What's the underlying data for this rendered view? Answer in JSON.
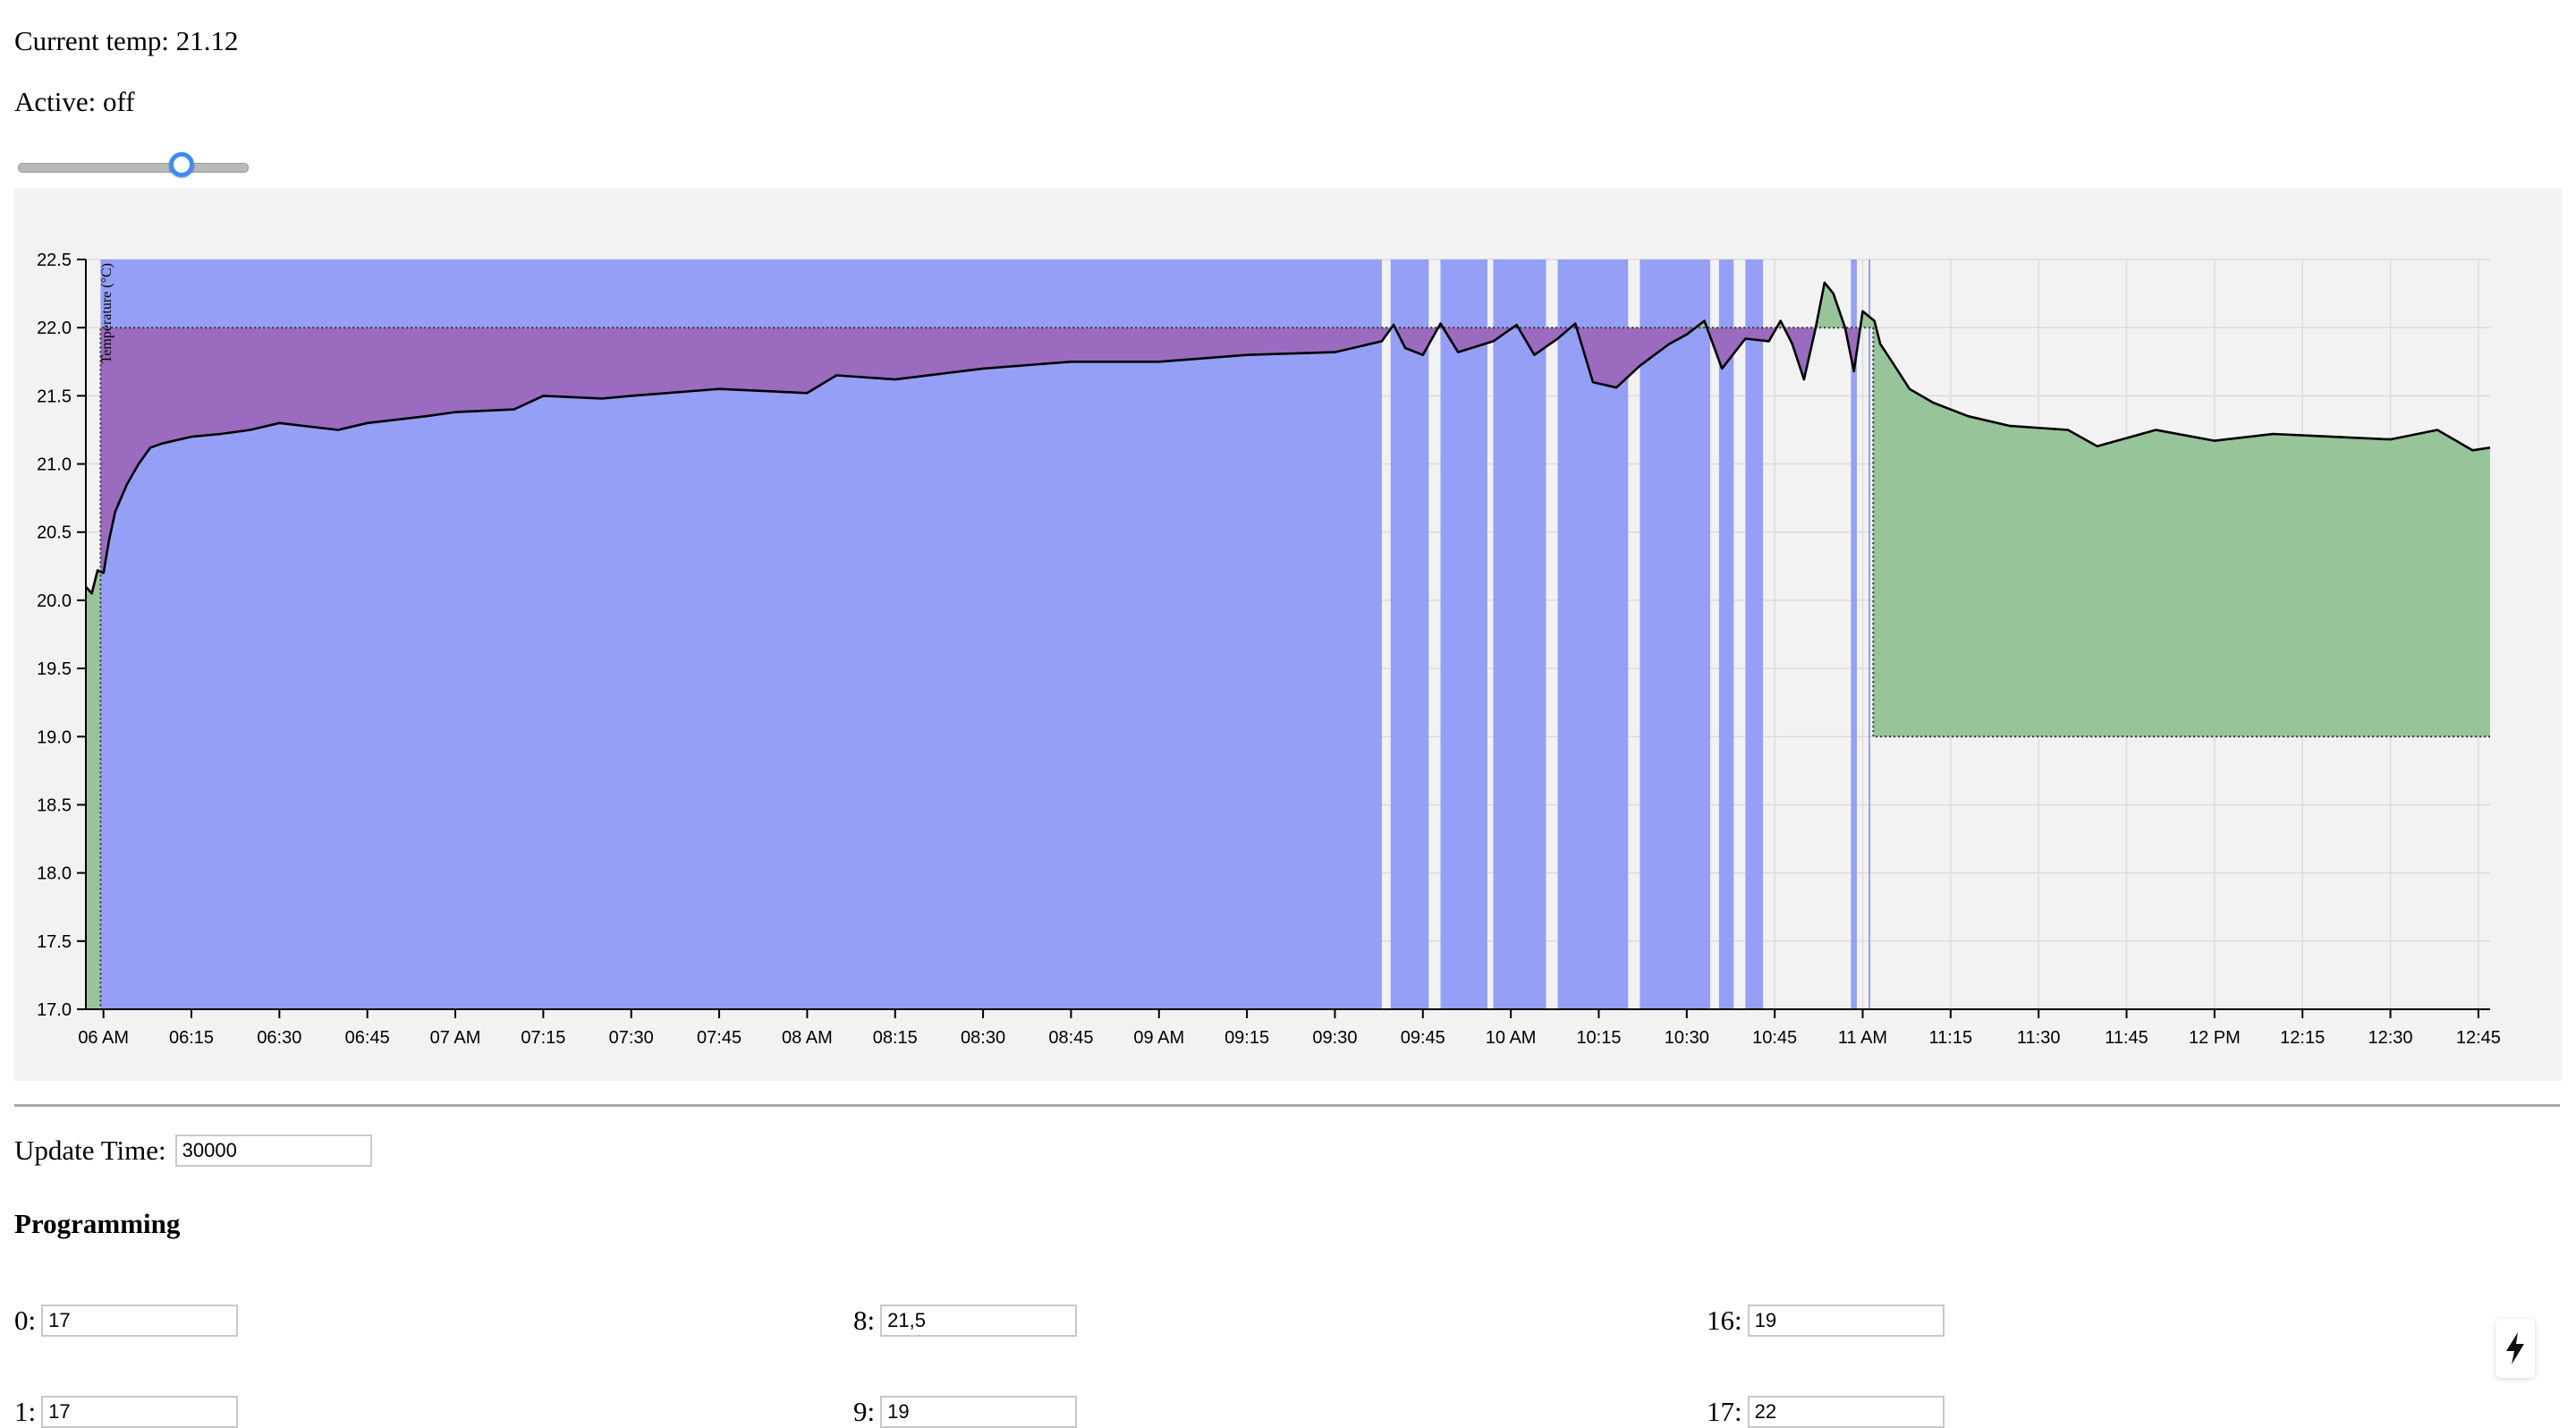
{
  "status": {
    "current_temp_label": "Current temp: 21.12",
    "active_label": "Active: off"
  },
  "slider": {
    "value_fraction": 0.73
  },
  "chart_data": {
    "type": "area",
    "ylabel": "Temperature (°C)",
    "ylim": [
      17.0,
      22.5
    ],
    "yticks": [
      "17.0",
      "17.5",
      "18.0",
      "18.5",
      "19.0",
      "19.5",
      "20.0",
      "20.5",
      "21.0",
      "21.5",
      "22.0",
      "22.5"
    ],
    "xlim": [
      "05:57",
      "12:47"
    ],
    "xticks": [
      {
        "t": "06:00",
        "label": "06 AM"
      },
      {
        "t": "06:15",
        "label": "06:15"
      },
      {
        "t": "06:30",
        "label": "06:30"
      },
      {
        "t": "06:45",
        "label": "06:45"
      },
      {
        "t": "07:00",
        "label": "07 AM"
      },
      {
        "t": "07:15",
        "label": "07:15"
      },
      {
        "t": "07:30",
        "label": "07:30"
      },
      {
        "t": "07:45",
        "label": "07:45"
      },
      {
        "t": "08:00",
        "label": "08 AM"
      },
      {
        "t": "08:15",
        "label": "08:15"
      },
      {
        "t": "08:30",
        "label": "08:30"
      },
      {
        "t": "08:45",
        "label": "08:45"
      },
      {
        "t": "09:00",
        "label": "09 AM"
      },
      {
        "t": "09:15",
        "label": "09:15"
      },
      {
        "t": "09:30",
        "label": "09:30"
      },
      {
        "t": "09:45",
        "label": "09:45"
      },
      {
        "t": "10:00",
        "label": "10 AM"
      },
      {
        "t": "10:15",
        "label": "10:15"
      },
      {
        "t": "10:30",
        "label": "10:30"
      },
      {
        "t": "10:45",
        "label": "10:45"
      },
      {
        "t": "11:00",
        "label": "11 AM"
      },
      {
        "t": "11:15",
        "label": "11:15"
      },
      {
        "t": "11:30",
        "label": "11:30"
      },
      {
        "t": "11:45",
        "label": "11:45"
      },
      {
        "t": "12:00",
        "label": "12 PM"
      },
      {
        "t": "12:15",
        "label": "12:15"
      },
      {
        "t": "12:30",
        "label": "12:30"
      },
      {
        "t": "12:45",
        "label": "12:45"
      }
    ],
    "grid": true,
    "setpoint": [
      {
        "t": "05:57",
        "v": 17.0
      },
      {
        "t": "05:59.5",
        "v": 17.0
      },
      {
        "t": "05:59.5",
        "v": 22.0
      },
      {
        "t": "11:01.8",
        "v": 22.0
      },
      {
        "t": "11:01.8",
        "v": 19.0
      },
      {
        "t": "12:47",
        "v": 19.0
      }
    ],
    "temperature": [
      {
        "t": "05:57",
        "v": 20.1
      },
      {
        "t": "05:58",
        "v": 20.05
      },
      {
        "t": "05:59",
        "v": 20.22
      },
      {
        "t": "06:00",
        "v": 20.2
      },
      {
        "t": "06:01",
        "v": 20.45
      },
      {
        "t": "06:02",
        "v": 20.65
      },
      {
        "t": "06:04",
        "v": 20.85
      },
      {
        "t": "06:06",
        "v": 21.0
      },
      {
        "t": "06:08",
        "v": 21.12
      },
      {
        "t": "06:10",
        "v": 21.15
      },
      {
        "t": "06:15",
        "v": 21.2
      },
      {
        "t": "06:20",
        "v": 21.22
      },
      {
        "t": "06:25",
        "v": 21.25
      },
      {
        "t": "06:30",
        "v": 21.3
      },
      {
        "t": "06:40",
        "v": 21.25
      },
      {
        "t": "06:45",
        "v": 21.3
      },
      {
        "t": "06:55",
        "v": 21.35
      },
      {
        "t": "07:00",
        "v": 21.38
      },
      {
        "t": "07:10",
        "v": 21.4
      },
      {
        "t": "07:15",
        "v": 21.5
      },
      {
        "t": "07:25",
        "v": 21.48
      },
      {
        "t": "07:30",
        "v": 21.5
      },
      {
        "t": "07:45",
        "v": 21.55
      },
      {
        "t": "08:00",
        "v": 21.52
      },
      {
        "t": "08:05",
        "v": 21.65
      },
      {
        "t": "08:15",
        "v": 21.62
      },
      {
        "t": "08:30",
        "v": 21.7
      },
      {
        "t": "08:45",
        "v": 21.75
      },
      {
        "t": "09:00",
        "v": 21.75
      },
      {
        "t": "09:15",
        "v": 21.8
      },
      {
        "t": "09:30",
        "v": 21.82
      },
      {
        "t": "09:38",
        "v": 21.9
      },
      {
        "t": "09:40",
        "v": 22.02
      },
      {
        "t": "09:42",
        "v": 21.85
      },
      {
        "t": "09:45",
        "v": 21.8
      },
      {
        "t": "09:48",
        "v": 22.03
      },
      {
        "t": "09:51",
        "v": 21.82
      },
      {
        "t": "09:57",
        "v": 21.9
      },
      {
        "t": "10:01",
        "v": 22.02
      },
      {
        "t": "10:04",
        "v": 21.8
      },
      {
        "t": "10:08",
        "v": 21.92
      },
      {
        "t": "10:11",
        "v": 22.03
      },
      {
        "t": "10:14",
        "v": 21.6
      },
      {
        "t": "10:18",
        "v": 21.56
      },
      {
        "t": "10:22",
        "v": 21.72
      },
      {
        "t": "10:27",
        "v": 21.88
      },
      {
        "t": "10:30",
        "v": 21.95
      },
      {
        "t": "10:33",
        "v": 22.05
      },
      {
        "t": "10:36",
        "v": 21.7
      },
      {
        "t": "10:40",
        "v": 21.92
      },
      {
        "t": "10:44",
        "v": 21.9
      },
      {
        "t": "10:46",
        "v": 22.05
      },
      {
        "t": "10:48",
        "v": 21.88
      },
      {
        "t": "10:50",
        "v": 21.62
      },
      {
        "t": "10:52",
        "v": 22.0
      },
      {
        "t": "10:53.5",
        "v": 22.33
      },
      {
        "t": "10:55",
        "v": 22.25
      },
      {
        "t": "10:57",
        "v": 22.0
      },
      {
        "t": "10:58.5",
        "v": 21.68
      },
      {
        "t": "11:00",
        "v": 22.12
      },
      {
        "t": "11:02",
        "v": 22.05
      },
      {
        "t": "11:03",
        "v": 21.88
      },
      {
        "t": "11:05",
        "v": 21.75
      },
      {
        "t": "11:08",
        "v": 21.55
      },
      {
        "t": "11:12",
        "v": 21.45
      },
      {
        "t": "11:18",
        "v": 21.35
      },
      {
        "t": "11:25",
        "v": 21.28
      },
      {
        "t": "11:35",
        "v": 21.25
      },
      {
        "t": "11:40",
        "v": 21.13
      },
      {
        "t": "11:50",
        "v": 21.25
      },
      {
        "t": "12:00",
        "v": 21.17
      },
      {
        "t": "12:10",
        "v": 21.22
      },
      {
        "t": "12:20",
        "v": 21.2
      },
      {
        "t": "12:30",
        "v": 21.18
      },
      {
        "t": "12:38",
        "v": 21.25
      },
      {
        "t": "12:44",
        "v": 21.1
      },
      {
        "t": "12:47",
        "v": 21.12
      }
    ],
    "heating_on_intervals": [
      [
        "05:59.5",
        "09:38"
      ],
      [
        "09:39.5",
        "09:46"
      ],
      [
        "09:48",
        "09:56"
      ],
      [
        "09:57",
        "10:06"
      ],
      [
        "10:08",
        "10:20"
      ],
      [
        "10:22",
        "10:34"
      ],
      [
        "10:35.5",
        "10:38"
      ],
      [
        "10:40",
        "10:43"
      ],
      [
        "10:58",
        "10:59"
      ],
      [
        "11:01",
        "11:01.3"
      ]
    ],
    "colors": {
      "heating": "#959ff5",
      "above_setpoint": "#9b6bc0",
      "below_setpoint": "#98c49a",
      "line": "#000000",
      "background": "#f2f2f2"
    }
  },
  "update": {
    "label": "Update Time:",
    "value": "30000"
  },
  "programming": {
    "title": "Programming",
    "items": [
      {
        "label": "0:",
        "value": "17"
      },
      {
        "label": "1:",
        "value": "17"
      },
      {
        "label": "8:",
        "value": "21,5"
      },
      {
        "label": "9:",
        "value": "19"
      },
      {
        "label": "16:",
        "value": "19"
      },
      {
        "label": "17:",
        "value": "22"
      }
    ]
  },
  "quick_action": {
    "icon": "lightning-icon"
  }
}
